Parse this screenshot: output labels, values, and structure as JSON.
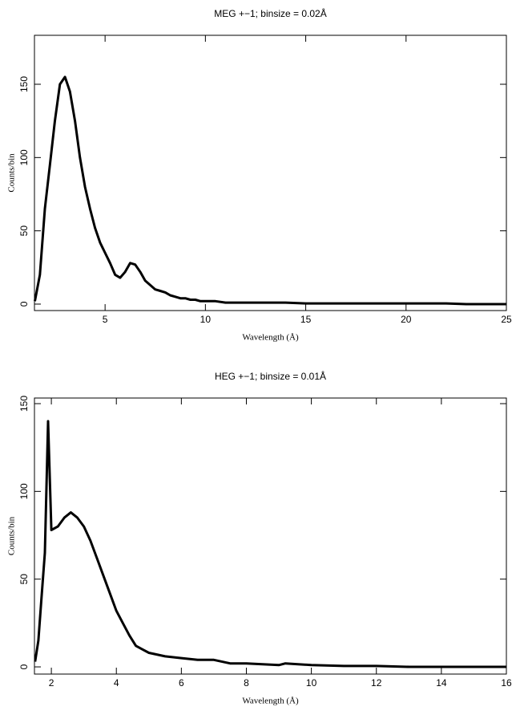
{
  "chart_data": [
    {
      "type": "line",
      "title": "MEG +−1; binsize = 0.02Å",
      "x_label": "Wavelength (Å)",
      "y_label": "Counts/bin",
      "xlim": [
        1.48,
        25
      ],
      "ylim": [
        -4.4,
        183.4
      ],
      "xticks": [
        5,
        10,
        15,
        20,
        25
      ],
      "yticks": [
        0,
        50,
        100,
        150
      ],
      "series": [
        {
          "name": "MEG",
          "color": "#000000",
          "x": [
            1.5,
            1.75,
            2.0,
            2.25,
            2.5,
            2.75,
            3.0,
            3.25,
            3.5,
            3.75,
            4.0,
            4.25,
            4.5,
            4.75,
            5.0,
            5.25,
            5.5,
            5.75,
            6.0,
            6.25,
            6.5,
            6.75,
            7.0,
            7.25,
            7.5,
            7.75,
            8.0,
            8.25,
            8.5,
            8.75,
            9.0,
            9.25,
            9.5,
            9.75,
            10,
            10.5,
            11,
            11.5,
            12,
            13,
            14,
            15,
            16,
            17,
            18,
            19,
            20,
            21,
            22,
            23,
            24,
            25
          ],
          "values": [
            2,
            20,
            65,
            95,
            125,
            150,
            155,
            145,
            125,
            100,
            80,
            65,
            52,
            42,
            35,
            28,
            20,
            18,
            22,
            28,
            27,
            22,
            16,
            13,
            10,
            9,
            8,
            6,
            5,
            4,
            4,
            3,
            3,
            2,
            2,
            2,
            1,
            1,
            1,
            1,
            1,
            0.5,
            0.5,
            0.5,
            0.5,
            0.5,
            0.5,
            0.5,
            0.5,
            0,
            0,
            0
          ]
        }
      ]
    },
    {
      "type": "line",
      "title": "HEG +−1; binsize = 0.01Å",
      "x_label": "Wavelength (Å)",
      "y_label": "Counts/bin",
      "xlim": [
        1.48,
        16
      ],
      "ylim": [
        -4.1,
        153.2
      ],
      "xticks": [
        2,
        4,
        6,
        8,
        10,
        12,
        14,
        16
      ],
      "yticks": [
        0,
        50,
        100,
        150
      ],
      "series": [
        {
          "name": "HEG",
          "color": "#000000",
          "x": [
            1.5,
            1.6,
            1.7,
            1.8,
            1.9,
            2.0,
            2.2,
            2.4,
            2.6,
            2.8,
            3.0,
            3.2,
            3.4,
            3.6,
            3.8,
            4.0,
            4.2,
            4.4,
            4.6,
            4.8,
            5.0,
            5.5,
            6.0,
            6.5,
            7.0,
            7.5,
            8,
            9,
            9.2,
            10,
            11,
            12,
            13,
            14,
            16
          ],
          "values": [
            3,
            15,
            40,
            65,
            140,
            78,
            80,
            85,
            88,
            85,
            80,
            72,
            62,
            52,
            42,
            32,
            25,
            18,
            12,
            10,
            8,
            6,
            5,
            4,
            4,
            2,
            2,
            1,
            2,
            1,
            0.5,
            0.5,
            0,
            0,
            0
          ]
        }
      ]
    }
  ]
}
